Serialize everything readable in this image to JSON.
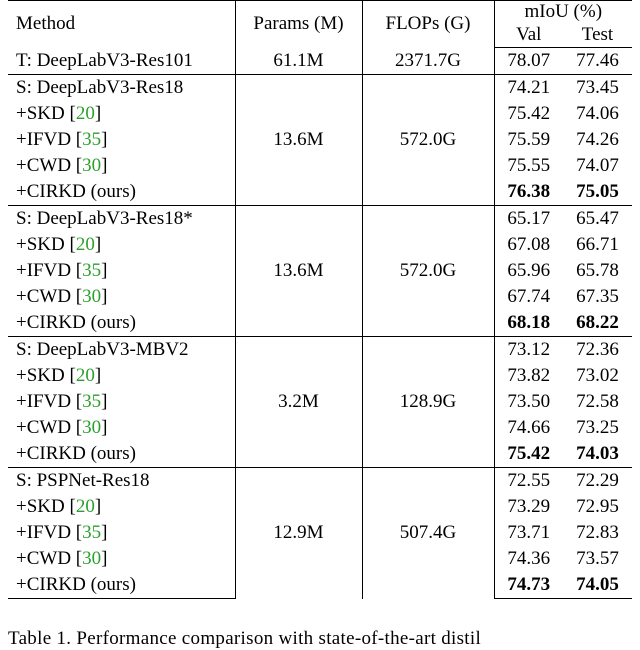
{
  "header": {
    "method": "Method",
    "params": "Params (M)",
    "flops": "FLOPs (G)",
    "miou": "mIoU (%)",
    "val": "Val",
    "test": "Test"
  },
  "teacher": {
    "method": "T: DeepLabV3-Res101",
    "params": "61.1M",
    "flops": "2371.7G",
    "val": "78.07",
    "test": "77.46"
  },
  "groups": [
    {
      "params": "13.6M",
      "flops": "572.0G",
      "rows": [
        {
          "method": "S: DeepLabV3-Res18",
          "cite": "",
          "suffix": "",
          "val": "74.21",
          "test": "73.45",
          "bold": false
        },
        {
          "method": "+SKD [",
          "cite": "20",
          "suffix": "]",
          "val": "75.42",
          "test": "74.06",
          "bold": false
        },
        {
          "method": "+IFVD [",
          "cite": "35",
          "suffix": "]",
          "val": "75.59",
          "test": "74.26",
          "bold": false
        },
        {
          "method": "+CWD [",
          "cite": "30",
          "suffix": "]",
          "val": "75.55",
          "test": "74.07",
          "bold": false
        },
        {
          "method": "+CIRKD (ours)",
          "cite": "",
          "suffix": "",
          "val": "76.38",
          "test": "75.05",
          "bold": true
        }
      ]
    },
    {
      "params": "13.6M",
      "flops": "572.0G",
      "rows": [
        {
          "method": "S: DeepLabV3-Res18*",
          "cite": "",
          "suffix": "",
          "val": "65.17",
          "test": "65.47",
          "bold": false
        },
        {
          "method": "+SKD [",
          "cite": "20",
          "suffix": "]",
          "val": "67.08",
          "test": "66.71",
          "bold": false
        },
        {
          "method": "+IFVD [",
          "cite": "35",
          "suffix": "]",
          "val": "65.96",
          "test": "65.78",
          "bold": false
        },
        {
          "method": "+CWD [",
          "cite": "30",
          "suffix": "]",
          "val": "67.74",
          "test": "67.35",
          "bold": false
        },
        {
          "method": "+CIRKD (ours)",
          "cite": "",
          "suffix": "",
          "val": "68.18",
          "test": "68.22",
          "bold": true
        }
      ]
    },
    {
      "params": "3.2M",
      "flops": "128.9G",
      "rows": [
        {
          "method": "S: DeepLabV3-MBV2",
          "cite": "",
          "suffix": "",
          "val": "73.12",
          "test": "72.36",
          "bold": false
        },
        {
          "method": "+SKD [",
          "cite": "20",
          "suffix": "]",
          "val": "73.82",
          "test": "73.02",
          "bold": false
        },
        {
          "method": "+IFVD [",
          "cite": "35",
          "suffix": "]",
          "val": "73.50",
          "test": "72.58",
          "bold": false
        },
        {
          "method": "+CWD [",
          "cite": "30",
          "suffix": "]",
          "val": "74.66",
          "test": "73.25",
          "bold": false
        },
        {
          "method": "+CIRKD (ours)",
          "cite": "",
          "suffix": "",
          "val": "75.42",
          "test": "74.03",
          "bold": true
        }
      ]
    },
    {
      "params": "12.9M",
      "flops": "507.4G",
      "rows": [
        {
          "method": "S: PSPNet-Res18",
          "cite": "",
          "suffix": "",
          "val": "72.55",
          "test": "72.29",
          "bold": false
        },
        {
          "method": "+SKD [",
          "cite": "20",
          "suffix": "]",
          "val": "73.29",
          "test": "72.95",
          "bold": false
        },
        {
          "method": "+IFVD [",
          "cite": "35",
          "suffix": "]",
          "val": "73.71",
          "test": "72.83",
          "bold": false
        },
        {
          "method": "+CWD [",
          "cite": "30",
          "suffix": "]",
          "val": "74.36",
          "test": "73.57",
          "bold": false
        },
        {
          "method": "+CIRKD (ours)",
          "cite": "",
          "suffix": "",
          "val": "74.73",
          "test": "74.05",
          "bold": true
        }
      ]
    }
  ],
  "caption": "Table 1.   Performance comparison with state-of-the-art distil",
  "colors": {
    "citation": "#2ca02c",
    "text": "#000000"
  }
}
